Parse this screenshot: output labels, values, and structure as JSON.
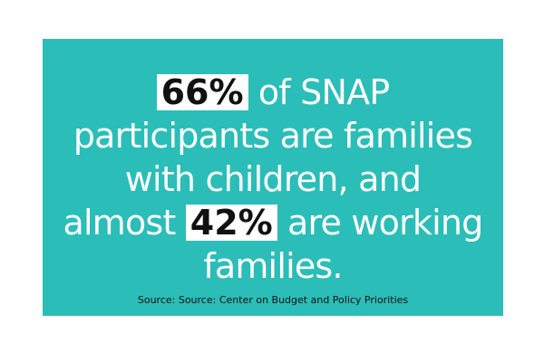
{
  "card": {
    "background_color": "#2bbdb8",
    "highlight_color": "#ffffff",
    "lines": [
      {
        "highlight": "",
        "before": "",
        "after_hl": ""
      },
      {
        "text": "participants are families"
      },
      {
        "text": "with children, and"
      },
      {
        "text": ""
      },
      {
        "text": "families."
      }
    ],
    "line1": {
      "highlight": "66%",
      "after": " of SNAP"
    },
    "line2": "participants are families",
    "line3": "with children, and",
    "line4": {
      "before": "almost ",
      "highlight": "42%",
      "after": " are working"
    },
    "line5": "families.",
    "source": "Source: Source: Center on Budget and Policy Priorities"
  }
}
